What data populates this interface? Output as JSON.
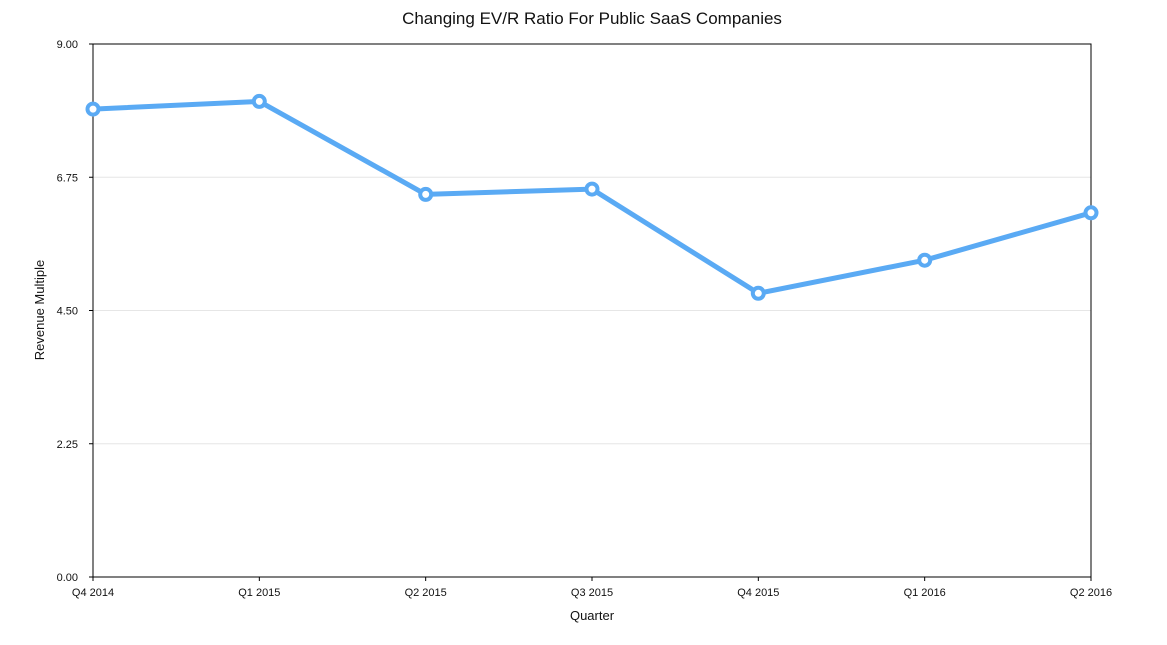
{
  "chart_data": {
    "type": "line",
    "title": "Changing EV/R Ratio For Public SaaS Companies",
    "xlabel": "Quarter",
    "ylabel": "Revenue Multiple",
    "categories": [
      "Q4 2014",
      "Q1 2015",
      "Q2 2015",
      "Q3 2015",
      "Q4 2015",
      "Q1 2016",
      "Q2 2016"
    ],
    "series": [
      {
        "values": [
          7.9,
          8.03,
          6.46,
          6.55,
          4.79,
          5.35,
          6.15
        ]
      }
    ],
    "ylim": [
      0,
      9
    ],
    "yticks": [
      "0.00",
      "2.25",
      "4.50",
      "6.75",
      "9.00"
    ],
    "grid": true,
    "legend": "none",
    "colors": {
      "line": "#5aaaf4",
      "grid": "#e6e6e6",
      "axis": "#000000"
    }
  }
}
